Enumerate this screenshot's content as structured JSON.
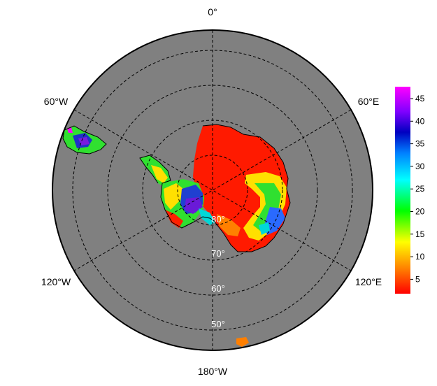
{
  "map": {
    "longitude_labels": {
      "top": "0°",
      "upper_left": "60°W",
      "upper_right": "60°E",
      "lower_left": "120°W",
      "lower_right": "120°E",
      "bottom": "180°W"
    },
    "latitude_labels": [
      "80°",
      "70°",
      "60°",
      "50°"
    ],
    "colors": {
      "ocean": "#808080",
      "border": "#000000",
      "graticule": "#000000"
    }
  },
  "colorbar": {
    "ticks": [
      "45",
      "40",
      "35",
      "30",
      "25",
      "20",
      "15",
      "10",
      "5"
    ],
    "stops": [
      "#ff0000",
      "#ff7f00",
      "#ffff00",
      "#00ff00",
      "#00ffff",
      "#0080ff",
      "#0000c0",
      "#8000ff",
      "#ff00ff"
    ]
  }
}
